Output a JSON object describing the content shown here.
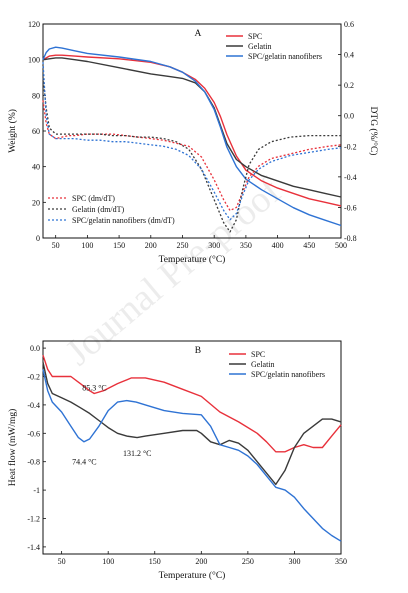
{
  "watermark": "Journal Pre-proof",
  "chart_data": [
    {
      "type": "line",
      "panel_label": "A",
      "xlabel": "Temperature (°C)",
      "ylabel": "Weight (%)",
      "y2label": "DTG (%/°C)",
      "xlim": [
        30,
        500
      ],
      "ylim": [
        0,
        120
      ],
      "y2lim": [
        -0.8,
        0.6
      ],
      "xticks": [
        50,
        100,
        150,
        200,
        250,
        300,
        350,
        400,
        450,
        500
      ],
      "yticks": [
        0,
        20,
        40,
        60,
        80,
        100,
        120
      ],
      "y2ticks": [
        -0.8,
        -0.6,
        -0.4,
        -0.2,
        0.0,
        0.2,
        0.4,
        0.6
      ],
      "legend_position": "top-right",
      "legend2_position": "bottom-left",
      "series": [
        {
          "name": "SPC",
          "axis": "left",
          "style": "solid",
          "color": "#e8313b",
          "x": [
            30,
            40,
            50,
            60,
            80,
            100,
            150,
            200,
            230,
            250,
            270,
            285,
            300,
            310,
            320,
            335,
            350,
            375,
            400,
            425,
            450,
            475,
            500
          ],
          "y": [
            100,
            102,
            102.5,
            102.5,
            102,
            101.5,
            100.5,
            98.5,
            96,
            93,
            89,
            84,
            76,
            68,
            58,
            46,
            38,
            32,
            28,
            25,
            22,
            20,
            18
          ]
        },
        {
          "name": "Gelatin",
          "axis": "left",
          "style": "solid",
          "color": "#3a3a3a",
          "x": [
            30,
            40,
            50,
            60,
            80,
            100,
            150,
            200,
            230,
            250,
            270,
            285,
            300,
            310,
            320,
            335,
            350,
            375,
            400,
            425,
            450,
            475,
            500
          ],
          "y": [
            100,
            100.5,
            101,
            101,
            100,
            99,
            95.5,
            92,
            90.5,
            89.5,
            87,
            82,
            73,
            63,
            53,
            44,
            40,
            35,
            32,
            29,
            27,
            25,
            23
          ]
        },
        {
          "name": "SPC/gelatin nanofibers",
          "axis": "left",
          "style": "solid",
          "color": "#2f73d4",
          "x": [
            30,
            35,
            40,
            50,
            60,
            80,
            100,
            150,
            200,
            230,
            250,
            270,
            285,
            300,
            310,
            320,
            335,
            350,
            375,
            400,
            425,
            450,
            475,
            500
          ],
          "y": [
            100,
            104,
            106,
            107,
            106.5,
            105,
            103.5,
            101.5,
            99,
            96,
            93,
            88,
            82,
            72,
            62,
            51,
            40,
            33,
            27,
            22,
            17,
            13,
            10,
            7
          ]
        },
        {
          "name": "SPC (dm/dT)",
          "axis": "right",
          "style": "dotted",
          "color": "#e8313b",
          "x": [
            30,
            35,
            40,
            50,
            60,
            70,
            80,
            100,
            120,
            140,
            160,
            180,
            200,
            220,
            240,
            260,
            280,
            300,
            315,
            325,
            335,
            345,
            355,
            370,
            390,
            420,
            450,
            480,
            500
          ],
          "y": [
            0.1,
            -0.05,
            -0.12,
            -0.15,
            -0.14,
            -0.13,
            -0.13,
            -0.12,
            -0.12,
            -0.12,
            -0.13,
            -0.14,
            -0.15,
            -0.16,
            -0.18,
            -0.2,
            -0.27,
            -0.42,
            -0.55,
            -0.62,
            -0.6,
            -0.5,
            -0.4,
            -0.33,
            -0.28,
            -0.25,
            -0.22,
            -0.2,
            -0.19
          ]
        },
        {
          "name": "Gelatin (dm/dT)",
          "axis": "right",
          "style": "dotted",
          "color": "#3a3a3a",
          "x": [
            30,
            35,
            40,
            50,
            60,
            70,
            80,
            100,
            120,
            140,
            160,
            180,
            200,
            220,
            240,
            260,
            280,
            300,
            315,
            325,
            335,
            345,
            355,
            370,
            390,
            420,
            450,
            480,
            500
          ],
          "y": [
            0.25,
            0.05,
            -0.08,
            -0.12,
            -0.12,
            -0.12,
            -0.12,
            -0.12,
            -0.12,
            -0.13,
            -0.13,
            -0.14,
            -0.14,
            -0.15,
            -0.17,
            -0.22,
            -0.35,
            -0.55,
            -0.7,
            -0.76,
            -0.68,
            -0.48,
            -0.32,
            -0.22,
            -0.17,
            -0.14,
            -0.13,
            -0.13,
            -0.13
          ]
        },
        {
          "name": "SPC/gelatin nanofibers (dm/dT)",
          "axis": "right",
          "style": "dotted",
          "color": "#2f73d4",
          "x": [
            30,
            35,
            40,
            50,
            60,
            70,
            80,
            100,
            120,
            140,
            160,
            180,
            200,
            220,
            240,
            260,
            280,
            300,
            315,
            325,
            335,
            345,
            355,
            370,
            390,
            420,
            450,
            480,
            500
          ],
          "y": [
            0.35,
            0.0,
            -0.12,
            -0.15,
            -0.15,
            -0.15,
            -0.15,
            -0.16,
            -0.16,
            -0.17,
            -0.17,
            -0.18,
            -0.19,
            -0.2,
            -0.22,
            -0.26,
            -0.35,
            -0.5,
            -0.62,
            -0.68,
            -0.64,
            -0.52,
            -0.42,
            -0.35,
            -0.3,
            -0.26,
            -0.24,
            -0.22,
            -0.21
          ]
        }
      ]
    },
    {
      "type": "line",
      "panel_label": "B",
      "xlabel": "Temperature (°C)",
      "ylabel": "Heat flow (mW/mg)",
      "xlim": [
        30,
        350
      ],
      "ylim": [
        -1.45,
        0.05
      ],
      "xticks": [
        50,
        100,
        150,
        200,
        250,
        300,
        350
      ],
      "yticks": [
        0.0,
        -0.2,
        -0.4,
        -0.6,
        -0.8,
        -1.0,
        -1.2,
        -1.4
      ],
      "legend_position": "top-right",
      "annotations": [
        {
          "text": "85.3 °C",
          "x": 85.3,
          "y": -0.3
        },
        {
          "text": "74.4 °C",
          "x": 74.4,
          "y": -0.82
        },
        {
          "text": "131.2 °C",
          "x": 131.2,
          "y": -0.76
        }
      ],
      "series": [
        {
          "name": "SPC",
          "color": "#e8313b",
          "x": [
            30,
            35,
            40,
            50,
            60,
            70,
            80,
            85,
            95,
            110,
            125,
            140,
            160,
            180,
            200,
            220,
            240,
            260,
            270,
            280,
            290,
            300,
            310,
            320,
            330,
            340,
            350
          ],
          "y": [
            -0.05,
            -0.15,
            -0.2,
            -0.2,
            -0.2,
            -0.25,
            -0.3,
            -0.32,
            -0.3,
            -0.25,
            -0.21,
            -0.21,
            -0.24,
            -0.29,
            -0.34,
            -0.45,
            -0.52,
            -0.6,
            -0.66,
            -0.73,
            -0.73,
            -0.7,
            -0.68,
            -0.7,
            -0.7,
            -0.62,
            -0.54
          ]
        },
        {
          "name": "Gelatin",
          "color": "#3a3a3a",
          "x": [
            30,
            35,
            40,
            50,
            60,
            70,
            80,
            90,
            100,
            110,
            120,
            131,
            140,
            160,
            180,
            195,
            200,
            210,
            220,
            230,
            240,
            250,
            260,
            270,
            280,
            290,
            300,
            310,
            320,
            330,
            340,
            350
          ],
          "y": [
            -0.1,
            -0.25,
            -0.32,
            -0.35,
            -0.38,
            -0.42,
            -0.46,
            -0.51,
            -0.56,
            -0.6,
            -0.62,
            -0.63,
            -0.62,
            -0.6,
            -0.58,
            -0.58,
            -0.6,
            -0.66,
            -0.68,
            -0.65,
            -0.67,
            -0.72,
            -0.8,
            -0.88,
            -0.96,
            -0.86,
            -0.7,
            -0.6,
            -0.55,
            -0.5,
            -0.5,
            -0.52
          ]
        },
        {
          "name": "SPC/gelatin nanofibers",
          "color": "#2f73d4",
          "x": [
            30,
            35,
            40,
            50,
            60,
            68,
            74,
            80,
            90,
            100,
            110,
            120,
            130,
            140,
            160,
            180,
            200,
            210,
            220,
            230,
            240,
            250,
            260,
            270,
            280,
            290,
            300,
            310,
            320,
            330,
            340,
            350
          ],
          "y": [
            -0.15,
            -0.3,
            -0.38,
            -0.45,
            -0.55,
            -0.63,
            -0.66,
            -0.64,
            -0.55,
            -0.44,
            -0.38,
            -0.37,
            -0.38,
            -0.4,
            -0.44,
            -0.46,
            -0.47,
            -0.55,
            -0.68,
            -0.7,
            -0.72,
            -0.76,
            -0.82,
            -0.9,
            -0.98,
            -1.0,
            -1.05,
            -1.13,
            -1.2,
            -1.27,
            -1.32,
            -1.36
          ]
        }
      ]
    }
  ]
}
